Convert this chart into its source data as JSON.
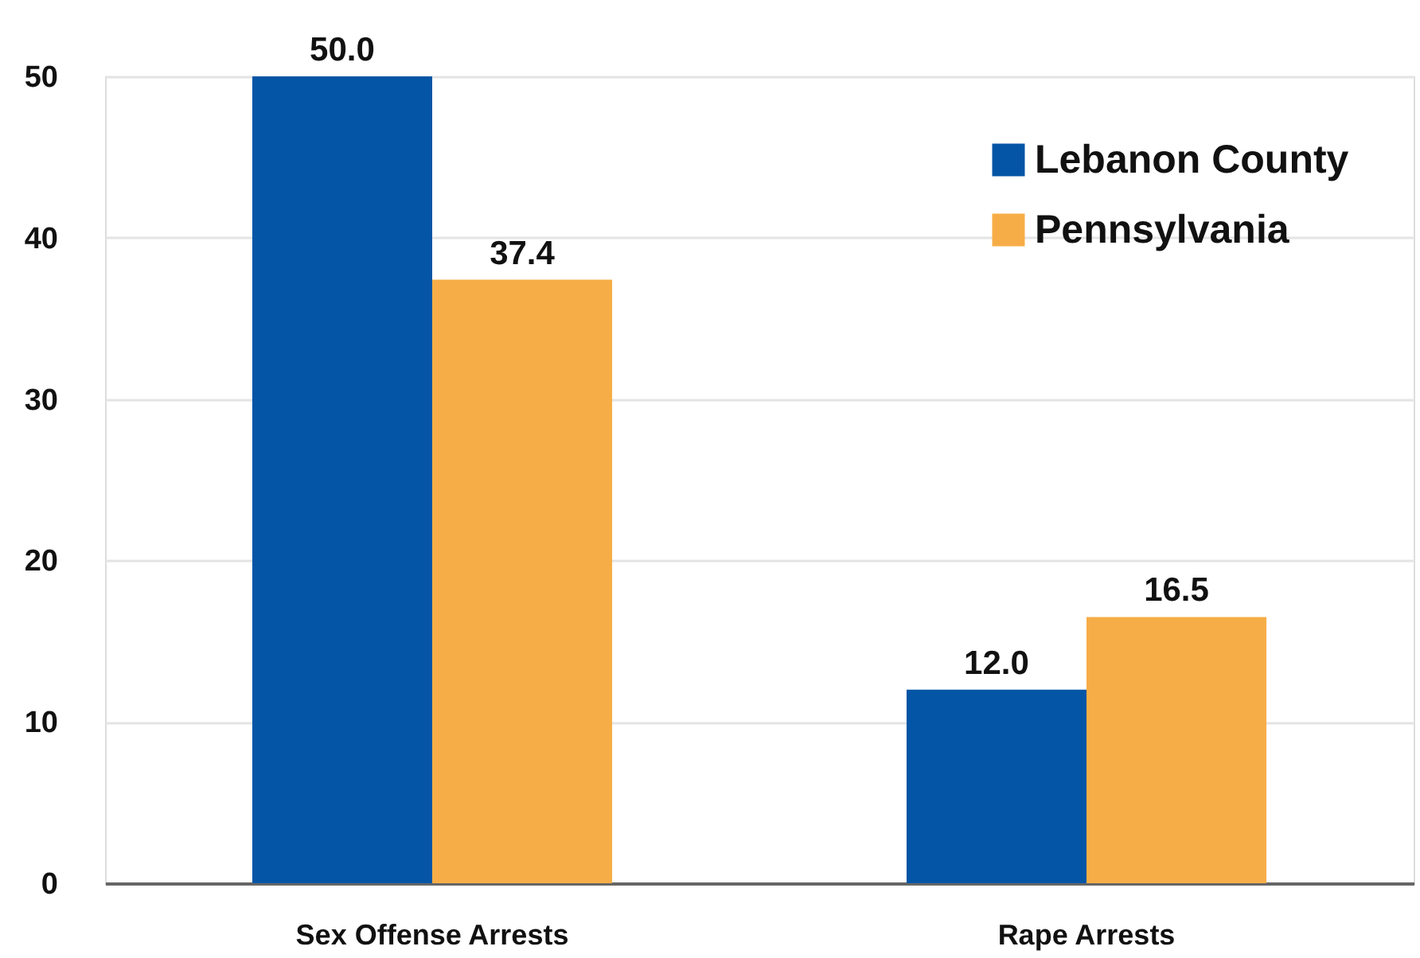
{
  "chart_data": {
    "type": "bar",
    "categories": [
      "Sex Offense Arrests",
      "Rape Arrests"
    ],
    "series": [
      {
        "name": "Lebanon County",
        "color": "#0455a5",
        "values": [
          50.0,
          12.0
        ],
        "value_labels": [
          "50.0",
          "12.0"
        ]
      },
      {
        "name": "Pennsylvania",
        "color": "#f7ad47",
        "values": [
          37.4,
          16.5
        ],
        "value_labels": [
          "37.4",
          "16.5"
        ]
      }
    ],
    "ylim": [
      0,
      50
    ],
    "yticks": [
      0,
      10,
      20,
      30,
      40,
      50
    ],
    "grid": "y",
    "legend": "top right"
  }
}
